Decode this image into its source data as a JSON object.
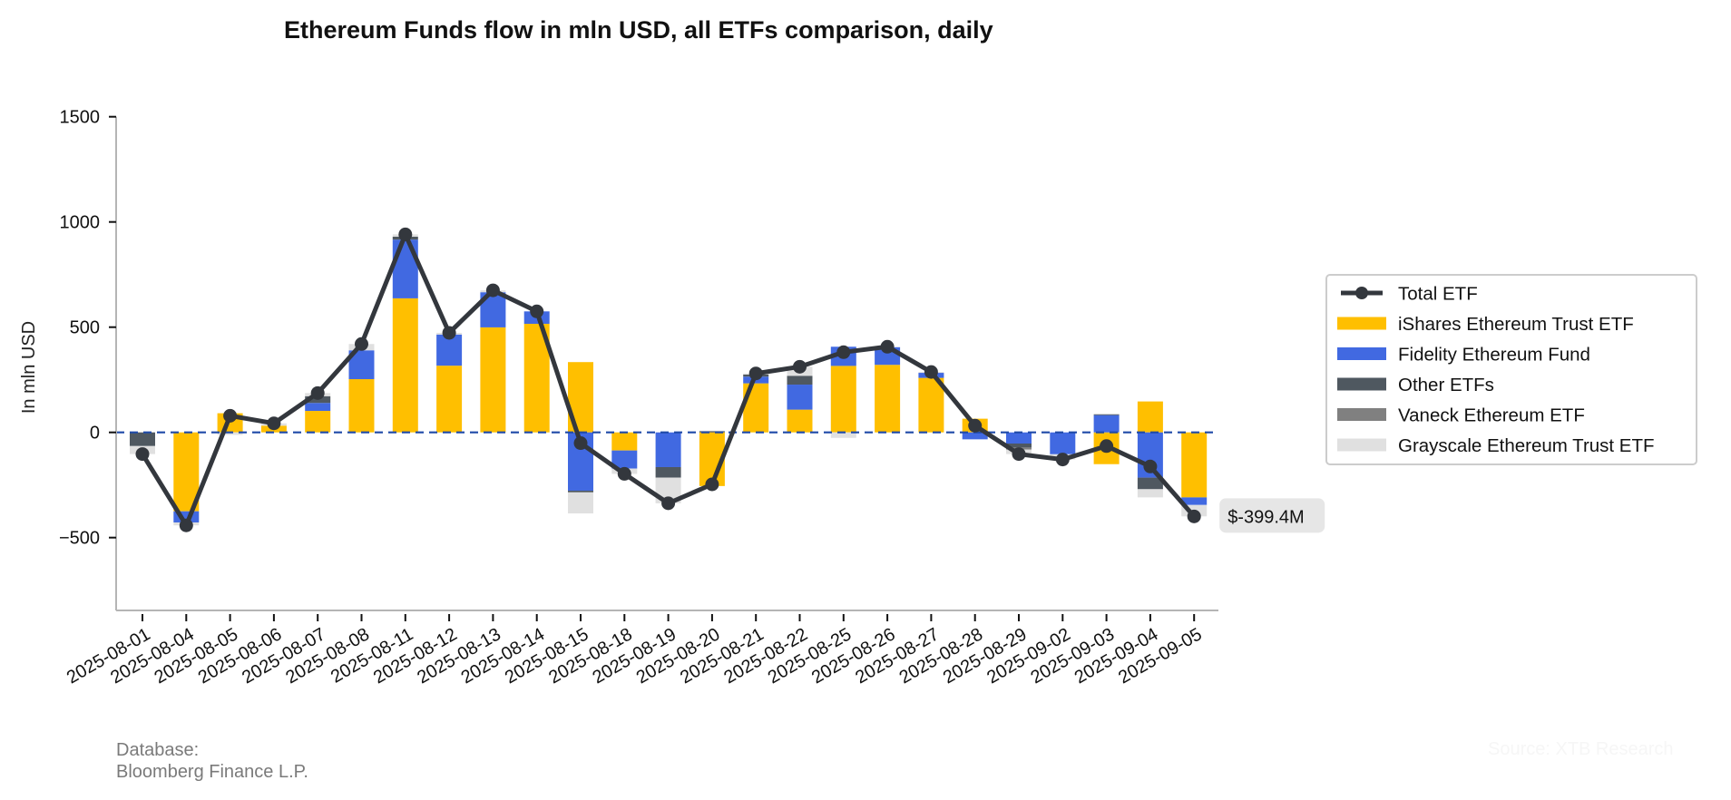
{
  "chart_data": {
    "type": "bar",
    "stacked": true,
    "title": "Ethereum Funds flow in mln USD, all ETFs comparison, daily",
    "xlabel": "",
    "ylabel": "In mln USD",
    "ylim": [
      -850,
      1500
    ],
    "yticks": [
      -500,
      0,
      500,
      1000,
      1500
    ],
    "ytick_labels": [
      "−500",
      "0",
      "500",
      "1000",
      "1500"
    ],
    "grid": false,
    "zero_line": "dashed",
    "legend_position": "right",
    "categories": [
      "2025-08-01",
      "2025-08-04",
      "2025-08-05",
      "2025-08-06",
      "2025-08-07",
      "2025-08-08",
      "2025-08-11",
      "2025-08-12",
      "2025-08-13",
      "2025-08-14",
      "2025-08-15",
      "2025-08-18",
      "2025-08-19",
      "2025-08-20",
      "2025-08-21",
      "2025-08-22",
      "2025-08-25",
      "2025-08-26",
      "2025-08-27",
      "2025-08-28",
      "2025-08-29",
      "2025-09-02",
      "2025-09-03",
      "2025-09-04",
      "2025-09-05"
    ],
    "series": [
      {
        "name": "iShares Ethereum Trust ETF",
        "color": "#FFBF00",
        "values": [
          0,
          -375,
          91,
          32,
          102,
          253,
          637,
          317,
          499,
          516,
          334,
          -86,
          0,
          -255,
          233,
          108,
          316,
          321,
          259,
          65,
          0,
          0,
          -151,
          147,
          -309
        ]
      },
      {
        "name": "Fidelity Ethereum Fund",
        "color": "#4169E1",
        "values": [
          0,
          -53,
          0,
          0,
          38,
          137,
          279,
          148,
          167,
          59,
          -277,
          -86,
          -165,
          0,
          32,
          119,
          91,
          84,
          24,
          -33,
          -53,
          -104,
          82,
          -215,
          -36
        ]
      },
      {
        "name": "Other ETFs",
        "color": "#4F5860",
        "values": [
          -65,
          0,
          0,
          0,
          32,
          0,
          14,
          0,
          0,
          0,
          -8,
          0,
          -50,
          6,
          10,
          42,
          0,
          0,
          0,
          0,
          -19,
          0,
          4,
          -55,
          0
        ]
      },
      {
        "name": "Vaneck Ethereum ETF",
        "color": "#808080",
        "values": [
          0,
          0,
          0,
          0,
          0,
          0,
          0,
          0,
          0,
          0,
          0,
          0,
          0,
          0,
          0,
          0,
          0,
          0,
          0,
          0,
          -10,
          0,
          0,
          0,
          0
        ]
      },
      {
        "name": "Grayscale Ethereum Trust ETF",
        "color": "#E0E0E0",
        "values": [
          -38,
          -14,
          -12,
          11,
          15,
          30,
          11,
          8,
          9,
          0,
          -100,
          -25,
          -122,
          2,
          5,
          43,
          -26,
          2,
          4,
          0,
          -21,
          -25,
          0,
          -39,
          -54
        ]
      }
    ],
    "line": {
      "name": "Total ETF",
      "color": "#33373D",
      "values": [
        -103,
        -442,
        79,
        43,
        187,
        420,
        941,
        473,
        675,
        575,
        -51,
        -197,
        -337,
        -247,
        280,
        312,
        381,
        407,
        287,
        32,
        -103,
        -129,
        -65,
        -162,
        -399.4
      ]
    },
    "annotation": {
      "text": "$-399.4M",
      "category": "2025-09-05",
      "value": -399.4
    }
  },
  "legend": {
    "items": [
      {
        "label": "Total ETF",
        "kind": "line",
        "color": "#33373D"
      },
      {
        "label": "iShares Ethereum Trust ETF",
        "kind": "bar",
        "color": "#FFBF00"
      },
      {
        "label": "Fidelity Ethereum Fund",
        "kind": "bar",
        "color": "#4169E1"
      },
      {
        "label": "Other ETFs",
        "kind": "bar",
        "color": "#4F5860"
      },
      {
        "label": "Vaneck Ethereum ETF",
        "kind": "bar",
        "color": "#808080"
      },
      {
        "label": "Grayscale Ethereum Trust ETF",
        "kind": "bar",
        "color": "#E0E0E0"
      }
    ]
  },
  "footer": {
    "database_label": "Database:",
    "database_value": "Bloomberg Finance L.P.",
    "watermark": "Source: XTB Research"
  }
}
